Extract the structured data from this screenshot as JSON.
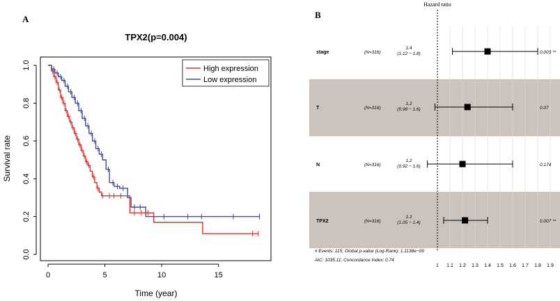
{
  "chart_data": [
    {
      "panel": "A",
      "type": "line",
      "subtype": "kaplan-meier",
      "title": "TPX2(p=0.004)",
      "xlabel": "Time (year)",
      "ylabel": "Survival rate",
      "xlim": [
        0,
        19
      ],
      "ylim": [
        0,
        1
      ],
      "xticks": [
        0,
        5,
        10,
        15
      ],
      "yticks": [
        0.0,
        0.2,
        0.4,
        0.6,
        0.8,
        1.0
      ],
      "legend_position": "top-right",
      "series": [
        {
          "name": "High expression",
          "color": "#e8302a",
          "x": [
            0,
            0.3,
            0.5,
            0.7,
            0.9,
            1.1,
            1.3,
            1.5,
            1.7,
            1.9,
            2.1,
            2.3,
            2.5,
            2.7,
            2.9,
            3.1,
            3.3,
            3.5,
            3.7,
            3.9,
            4.1,
            4.3,
            4.5,
            4.7,
            5.2,
            6.0,
            7.0,
            7.2,
            9.3,
            13.6,
            18.5
          ],
          "y": [
            1.0,
            0.97,
            0.94,
            0.91,
            0.87,
            0.83,
            0.8,
            0.76,
            0.73,
            0.7,
            0.67,
            0.64,
            0.61,
            0.58,
            0.55,
            0.52,
            0.49,
            0.47,
            0.44,
            0.41,
            0.38,
            0.35,
            0.33,
            0.31,
            0.31,
            0.31,
            0.31,
            0.22,
            0.17,
            0.11,
            0.11
          ],
          "censor_x": [
            0.4,
            0.6,
            0.8,
            1.0,
            1.2,
            1.4,
            1.6,
            1.8,
            2.0,
            2.2,
            2.4,
            2.6,
            2.8,
            3.0,
            3.2,
            3.4,
            3.6,
            4.0,
            4.4,
            4.8,
            5.4,
            5.8,
            6.4,
            7.6,
            8.2,
            8.8,
            18.0,
            18.5
          ]
        },
        {
          "name": "Low expression",
          "color": "#3b4aa3",
          "x": [
            0,
            0.3,
            0.6,
            0.9,
            1.2,
            1.5,
            1.8,
            2.1,
            2.4,
            2.7,
            3.0,
            3.3,
            3.6,
            3.9,
            4.2,
            4.5,
            4.8,
            5.1,
            5.4,
            5.8,
            6.3,
            7.0,
            7.3,
            8.6,
            18.6
          ],
          "y": [
            1.0,
            0.98,
            0.96,
            0.94,
            0.92,
            0.89,
            0.86,
            0.83,
            0.8,
            0.76,
            0.72,
            0.68,
            0.64,
            0.6,
            0.56,
            0.53,
            0.5,
            0.45,
            0.38,
            0.36,
            0.35,
            0.3,
            0.25,
            0.2,
            0.2
          ],
          "censor_x": [
            0.5,
            0.8,
            1.1,
            1.4,
            1.7,
            2.0,
            2.3,
            2.6,
            2.9,
            3.2,
            3.5,
            3.8,
            4.1,
            4.4,
            4.7,
            5.3,
            5.7,
            6.1,
            6.6,
            7.6,
            8.1,
            10.2,
            12.3,
            13.5,
            16.3,
            18.6
          ]
        }
      ]
    },
    {
      "panel": "B",
      "type": "forest",
      "title": "Hazard ratio",
      "xlim": [
        1,
        1.9
      ],
      "reference_line": 1,
      "xticks": [
        "1",
        "1.1",
        "1.2",
        "1.3",
        "1.4",
        "1.5",
        "1.6",
        "1.7",
        "1.8",
        "1.9"
      ],
      "rows": [
        {
          "label": "stage",
          "n": "(N=316)",
          "hr_text": "1.4",
          "ci_text": "(1.12 − 1.8)",
          "p": "0.003 **",
          "hr": 1.4,
          "lo": 1.12,
          "hi": 1.8,
          "shaded": false
        },
        {
          "label": "T",
          "n": "(N=316)",
          "hr_text": "1.2",
          "ci_text": "(0.98 − 1.6)",
          "p": "0.07",
          "hr": 1.24,
          "lo": 0.98,
          "hi": 1.6,
          "shaded": true
        },
        {
          "label": "N",
          "n": "(N=316)",
          "hr_text": "1.2",
          "ci_text": "(0.92 − 1.6)",
          "p": "0.174",
          "hr": 1.2,
          "lo": 0.92,
          "hi": 1.6,
          "shaded": false
        },
        {
          "label": "TPX2",
          "n": "(N=316)",
          "hr_text": "1.2",
          "ci_text": "(1.05 − 1.4)",
          "p": "0.007 **",
          "hr": 1.22,
          "lo": 1.05,
          "hi": 1.4,
          "shaded": true
        }
      ],
      "footnote_line1": "# Events: 115; Global p-value (Log-Rank): 1.1138e−09",
      "footnote_line2": "AIC: 1035.11; Concordance Index: 0.74"
    }
  ],
  "colors": {
    "shade": "#cdc3bd",
    "grid": "#d9d9d9",
    "axis": "#000000",
    "ci": "#000000",
    "marker": "#000000"
  }
}
